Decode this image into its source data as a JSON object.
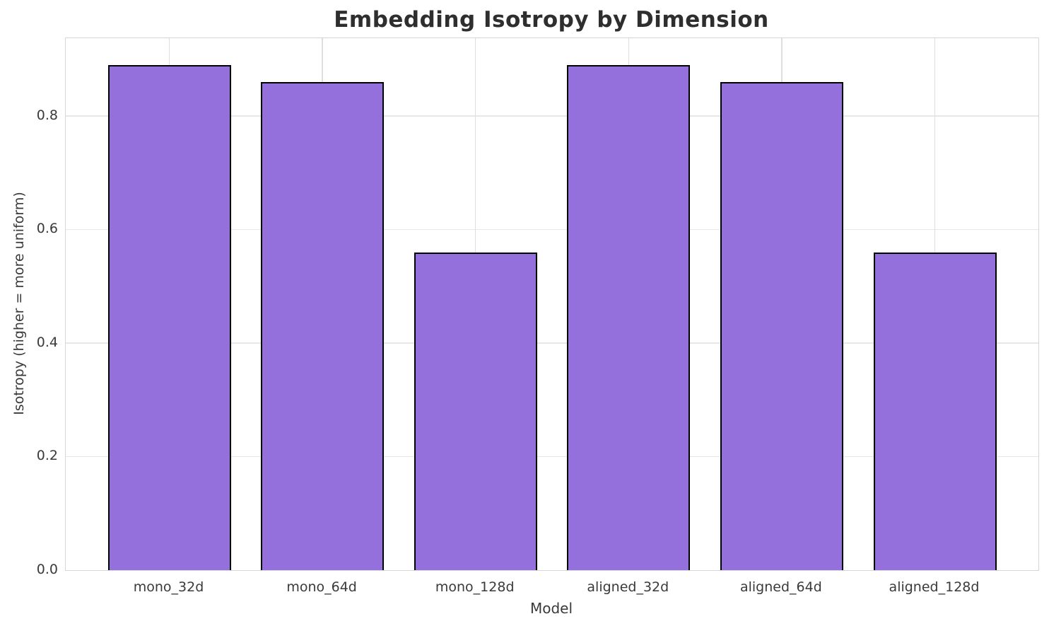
{
  "chart_data": {
    "type": "bar",
    "title": "Embedding Isotropy by Dimension",
    "xlabel": "Model",
    "ylabel": "Isotropy (higher = more uniform)",
    "categories": [
      "mono_32d",
      "mono_64d",
      "mono_128d",
      "aligned_32d",
      "aligned_64d",
      "aligned_128d"
    ],
    "values": [
      0.89,
      0.86,
      0.56,
      0.89,
      0.86,
      0.56
    ],
    "yticks": [
      0.0,
      0.2,
      0.4,
      0.6,
      0.8
    ],
    "ytick_labels": [
      "0.0",
      "0.2",
      "0.4",
      "0.6",
      "0.8"
    ],
    "ylim": [
      0,
      0.937
    ],
    "grid": true,
    "legend": null,
    "colors": {
      "bar_fill": "#9370DB",
      "bar_edge": "#000000",
      "grid_line": "#e7e7e7",
      "title_text": "#2e2e2e",
      "tick_text": "#3a3a3a"
    }
  }
}
